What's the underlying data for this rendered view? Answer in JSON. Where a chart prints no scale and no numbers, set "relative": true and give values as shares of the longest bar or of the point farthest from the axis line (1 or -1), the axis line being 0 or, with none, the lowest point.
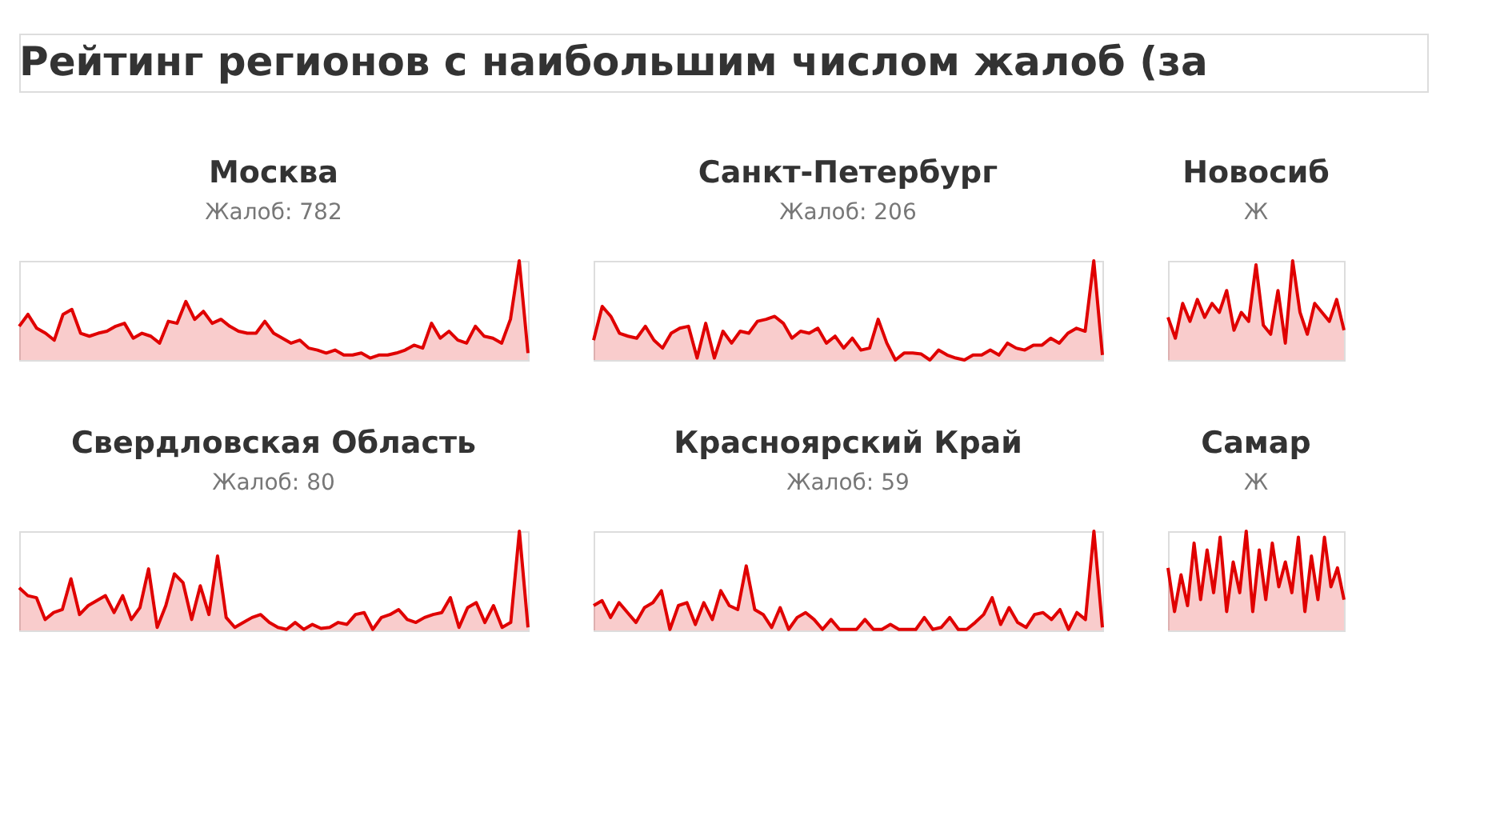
{
  "chart_data": [
    {
      "type": "other",
      "title": "Рейтинг регионов с наибольшим числом жалоб (за"
    },
    {
      "type": "area",
      "title": "Москва",
      "subtitle": "Жалоб: 782",
      "relative": true,
      "categories": [
        null,
        null,
        null,
        null,
        null,
        null,
        null,
        null,
        null,
        null,
        null,
        null,
        null,
        null,
        null,
        null,
        null,
        null,
        null,
        null,
        null,
        null,
        null,
        null,
        null,
        null,
        null,
        null,
        null,
        null,
        null,
        null,
        null,
        null,
        null,
        null,
        null,
        null,
        null,
        null,
        null,
        null,
        null,
        null,
        null,
        null,
        null,
        null,
        null,
        null,
        null,
        null,
        null,
        null,
        null,
        null,
        null,
        null,
        null
      ],
      "series": [
        {
          "color": "#e00000",
          "values": [
            0.34,
            0.46,
            0.32,
            0.27,
            0.2,
            0.46,
            0.51,
            0.27,
            0.24,
            0.27,
            0.29,
            0.34,
            0.37,
            0.22,
            0.27,
            0.24,
            0.17,
            0.39,
            0.37,
            0.59,
            0.41,
            0.49,
            0.37,
            0.41,
            0.34,
            0.29,
            0.27,
            0.27,
            0.39,
            0.27,
            0.22,
            0.17,
            0.2,
            0.12,
            0.1,
            0.07,
            0.1,
            0.05,
            0.05,
            0.07,
            0.02,
            0.05,
            0.05,
            0.07,
            0.1,
            0.15,
            0.12,
            0.37,
            0.22,
            0.29,
            0.2,
            0.17,
            0.34,
            0.24,
            0.22,
            0.17,
            0.41,
            1,
            0.07
          ]
        }
      ]
    },
    {
      "type": "area",
      "title": "Санкт-Петербург",
      "subtitle": "Жалоб: 206",
      "relative": true,
      "categories": [
        null,
        null,
        null,
        null,
        null,
        null,
        null,
        null,
        null,
        null,
        null,
        null,
        null,
        null,
        null,
        null,
        null,
        null,
        null,
        null,
        null,
        null,
        null,
        null,
        null,
        null,
        null,
        null,
        null,
        null,
        null,
        null,
        null,
        null,
        null,
        null,
        null,
        null,
        null,
        null,
        null,
        null,
        null,
        null,
        null,
        null,
        null,
        null,
        null,
        null,
        null,
        null,
        null,
        null,
        null,
        null,
        null,
        null,
        null,
        null
      ],
      "series": [
        {
          "color": "#e00000",
          "values": [
            0.2,
            0.54,
            0.44,
            0.27,
            0.24,
            0.22,
            0.34,
            0.2,
            0.12,
            0.27,
            0.32,
            0.34,
            0.02,
            0.37,
            0.02,
            0.29,
            0.17,
            0.29,
            0.27,
            0.39,
            0.41,
            0.44,
            0.37,
            0.22,
            0.29,
            0.27,
            0.32,
            0.17,
            0.24,
            0.12,
            0.22,
            0.1,
            0.12,
            0.41,
            0.17,
            0,
            0.07,
            0.07,
            0.06,
            0,
            0.1,
            0.05,
            0.02,
            0,
            0.05,
            0.05,
            0.1,
            0.05,
            0.17,
            0.12,
            0.1,
            0.15,
            0.15,
            0.22,
            0.17,
            0.27,
            0.32,
            0.29,
            1,
            0.05
          ]
        }
      ]
    },
    {
      "type": "area",
      "title": "Новосиб",
      "subtitle": "Ж",
      "relative": true,
      "categories": [
        null,
        null,
        null,
        null,
        null,
        null,
        null,
        null,
        null,
        null,
        null,
        null,
        null,
        null,
        null,
        null,
        null,
        null,
        null,
        null,
        null,
        null,
        null,
        null,
        null
      ],
      "series": [
        {
          "color": "#e00000",
          "values": [
            0.43,
            0.22,
            0.57,
            0.39,
            0.61,
            0.43,
            0.57,
            0.48,
            0.7,
            0.3,
            0.48,
            0.39,
            0.96,
            0.35,
            0.26,
            0.7,
            0.17,
            1,
            0.48,
            0.26,
            0.57,
            0.48,
            0.39,
            0.61,
            0.3
          ]
        }
      ]
    },
    {
      "type": "area",
      "title": "Свердловская Область",
      "subtitle": "Жалоб: 80",
      "relative": true,
      "categories": [
        null,
        null,
        null,
        null,
        null,
        null,
        null,
        null,
        null,
        null,
        null,
        null,
        null,
        null,
        null,
        null,
        null,
        null,
        null,
        null,
        null,
        null,
        null,
        null,
        null,
        null,
        null,
        null,
        null,
        null,
        null,
        null,
        null,
        null,
        null,
        null,
        null,
        null,
        null,
        null,
        null,
        null,
        null,
        null,
        null,
        null,
        null,
        null,
        null,
        null,
        null,
        null,
        null,
        null,
        null,
        null,
        null,
        null,
        null,
        null
      ],
      "series": [
        {
          "color": "#e00000",
          "values": [
            0.43,
            0.35,
            0.33,
            0.11,
            0.18,
            0.21,
            0.52,
            0.16,
            0.25,
            0.3,
            0.35,
            0.18,
            0.35,
            0.11,
            0.23,
            0.62,
            0.03,
            0.25,
            0.57,
            0.48,
            0.11,
            0.45,
            0.16,
            0.75,
            0.13,
            0.03,
            0.08,
            0.13,
            0.16,
            0.08,
            0.03,
            0.01,
            0.08,
            0.01,
            0.06,
            0.02,
            0.03,
            0.08,
            0.06,
            0.16,
            0.18,
            0.01,
            0.13,
            0.16,
            0.21,
            0.11,
            0.08,
            0.13,
            0.16,
            0.18,
            0.33,
            0.03,
            0.23,
            0.28,
            0.08,
            0.25,
            0.03,
            0.08,
            1,
            0.03
          ]
        }
      ]
    },
    {
      "type": "area",
      "title": "Красноярский Край",
      "subtitle": "Жалоб: 59",
      "relative": true,
      "categories": [
        null,
        null,
        null,
        null,
        null,
        null,
        null,
        null,
        null,
        null,
        null,
        null,
        null,
        null,
        null,
        null,
        null,
        null,
        null,
        null,
        null,
        null,
        null,
        null,
        null,
        null,
        null,
        null,
        null,
        null,
        null,
        null,
        null,
        null,
        null,
        null,
        null,
        null,
        null,
        null,
        null,
        null,
        null,
        null,
        null,
        null,
        null,
        null,
        null,
        null,
        null,
        null,
        null,
        null,
        null,
        null,
        null,
        null,
        null,
        null,
        null
      ],
      "series": [
        {
          "color": "#e00000",
          "values": [
            0.25,
            0.3,
            0.13,
            0.28,
            0.18,
            0.08,
            0.23,
            0.28,
            0.4,
            0.01,
            0.25,
            0.28,
            0.06,
            0.28,
            0.11,
            0.4,
            0.25,
            0.21,
            0.65,
            0.21,
            0.16,
            0.03,
            0.23,
            0.01,
            0.13,
            0.18,
            0.11,
            0.01,
            0.11,
            0.01,
            0.01,
            0.01,
            0.11,
            0.01,
            0.01,
            0.06,
            0.01,
            0.01,
            0.01,
            0.13,
            0.01,
            0.03,
            0.13,
            0.01,
            0.01,
            0.08,
            0.16,
            0.33,
            0.06,
            0.23,
            0.08,
            0.03,
            0.16,
            0.18,
            0.11,
            0.21,
            0.01,
            0.18,
            0.11,
            1,
            0.03
          ]
        }
      ]
    },
    {
      "type": "area",
      "title": "Самар",
      "subtitle": "Ж",
      "relative": true,
      "categories": [
        null,
        null,
        null,
        null,
        null,
        null,
        null,
        null,
        null,
        null,
        null,
        null,
        null,
        null,
        null,
        null,
        null,
        null,
        null,
        null,
        null,
        null,
        null,
        null,
        null,
        null,
        null,
        null
      ],
      "series": [
        {
          "color": "#e00000",
          "values": [
            0.63,
            0.19,
            0.56,
            0.25,
            0.88,
            0.31,
            0.81,
            0.38,
            0.94,
            0.19,
            0.69,
            0.38,
            1,
            0.19,
            0.81,
            0.31,
            0.88,
            0.44,
            0.69,
            0.38,
            0.94,
            0.19,
            0.75,
            0.31,
            0.94,
            0.44,
            0.63,
            0.31
          ]
        }
      ]
    }
  ]
}
